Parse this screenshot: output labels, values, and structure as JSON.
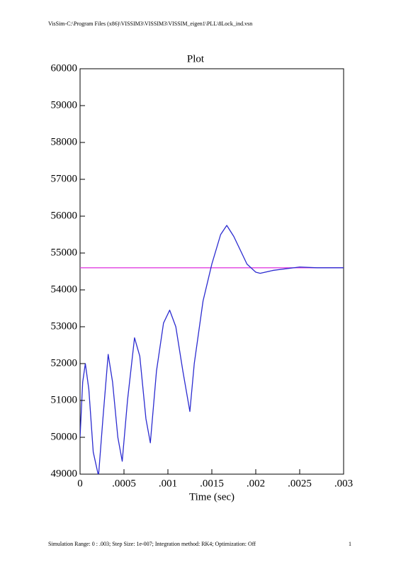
{
  "header": "VisSim-C:\\Program Files (x86)\\VISSIM3\\VISSIM3\\VISSIM_eigen1\\PLL\\8Lock_ind.vsn",
  "footer": {
    "text": "Simulation Range: 0 : .003; Step Size: 1e-007; Integration method: RK4; Optimization: Off",
    "page": "1"
  },
  "chart_data": {
    "type": "line",
    "title": "Plot",
    "x_label": "Time (sec)",
    "xlim": [
      0,
      0.003
    ],
    "ylim": [
      49000,
      60000
    ],
    "xticks": [
      0,
      {
        "value": 0.0005,
        "label": ".0005"
      },
      {
        "value": 0.001,
        "label": ".001"
      },
      {
        "value": 0.0015,
        "label": ".0015"
      },
      {
        "value": 0.002,
        "label": ".002"
      },
      {
        "value": 0.0025,
        "label": ".0025"
      },
      {
        "value": 0.003,
        "label": ".003"
      }
    ],
    "yticks": [
      49000,
      50000,
      51000,
      52000,
      53000,
      54000,
      55000,
      56000,
      57000,
      58000,
      59000,
      60000
    ],
    "series": [
      {
        "color": "#2b2bd0",
        "x": [
          0,
          3e-05,
          6e-05,
          0.0001,
          0.00015,
          0.00021,
          0.00026,
          0.00032,
          0.00037,
          0.00043,
          0.00048,
          0.00054,
          0.00062,
          0.00068,
          0.00075,
          0.0008,
          0.00087,
          0.00095,
          0.00102,
          0.00109,
          0.00117,
          0.00125,
          0.0013,
          0.0014,
          0.0015,
          0.0016,
          0.00167,
          0.00175,
          0.0019,
          0.002,
          0.00205,
          0.0022,
          0.0025,
          0.0027,
          0.003
        ],
        "values": [
          50000,
          51500,
          52000,
          51300,
          49600,
          48950,
          50500,
          52250,
          51500,
          50000,
          49350,
          51000,
          52700,
          52200,
          50500,
          49850,
          51800,
          53100,
          53450,
          53000,
          51800,
          50700,
          52000,
          53700,
          54700,
          55500,
          55750,
          55450,
          54700,
          54480,
          54450,
          54530,
          54620,
          54600,
          54600
        ]
      },
      {
        "color": "#e040e0",
        "x": [
          0,
          0.003
        ],
        "values": [
          54600,
          54600
        ]
      }
    ]
  }
}
